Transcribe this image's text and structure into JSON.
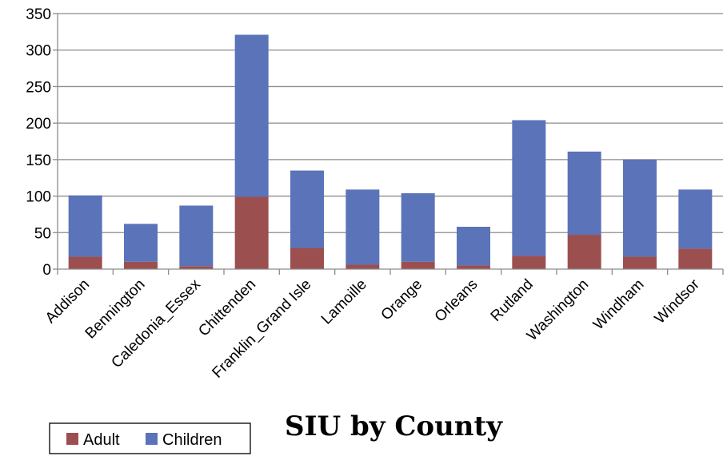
{
  "chart_data": {
    "type": "bar",
    "stacked": true,
    "title": "SIU by County",
    "xlabel": "",
    "ylabel": "",
    "ylim": [
      0,
      350
    ],
    "yticks": [
      0,
      50,
      100,
      150,
      200,
      250,
      300,
      350
    ],
    "grid": true,
    "legend_position": "bottom-left",
    "categories": [
      "Addison",
      "Bennington",
      "Caledonia_Essex",
      "Chittenden",
      "Franklin_Grand Isle",
      "Lamoille",
      "Orange",
      "Orleans",
      "Rutland",
      "Washington",
      "Windham",
      "Windsor"
    ],
    "series": [
      {
        "name": "Adult",
        "color": "#9c4f4f",
        "values": [
          17,
          10,
          4,
          99,
          29,
          6,
          10,
          5,
          18,
          47,
          17,
          28
        ]
      },
      {
        "name": "Children",
        "color": "#5b73b8",
        "values": [
          84,
          52,
          83,
          222,
          106,
          103,
          94,
          53,
          186,
          114,
          133,
          81
        ]
      }
    ]
  }
}
